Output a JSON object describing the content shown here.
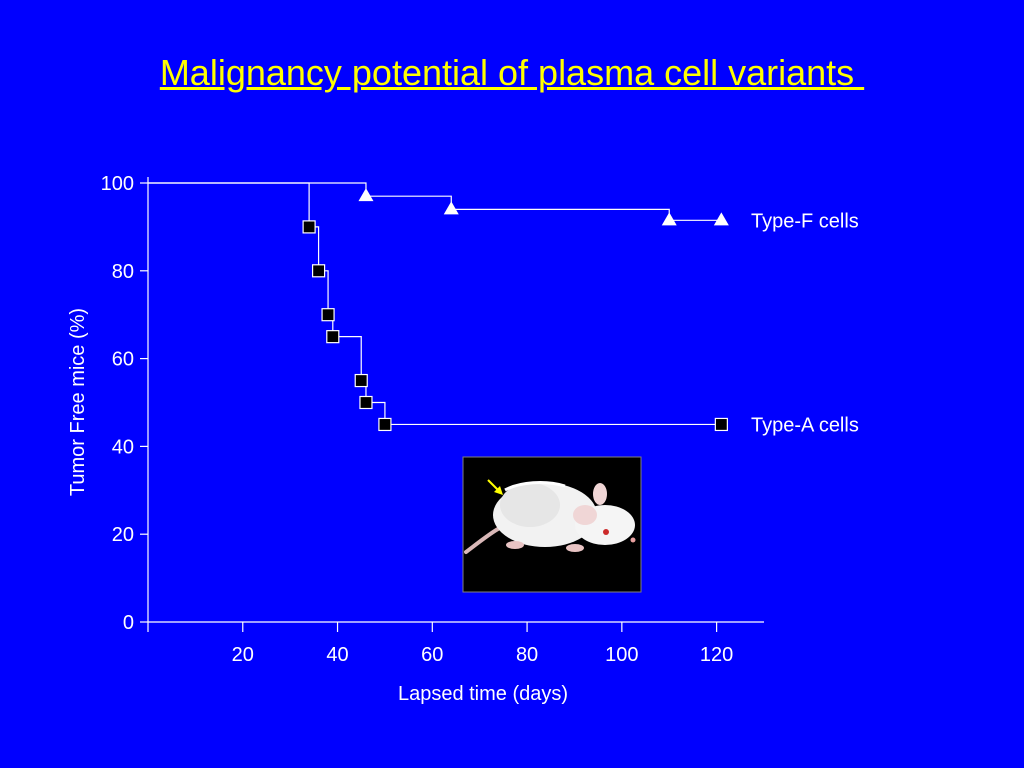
{
  "slide": {
    "title": "Malignancy potential of plasma cell variants ",
    "title_color": "#ffff00",
    "background_color": "#0000ff"
  },
  "chart_data": {
    "type": "line",
    "step": true,
    "title": "",
    "xlabel": "Lapsed time (days)",
    "ylabel": "Tumor Free mice (%)",
    "xlim": [
      0,
      130
    ],
    "ylim": [
      0,
      100
    ],
    "xticks": [
      20,
      40,
      60,
      80,
      100,
      120
    ],
    "yticks": [
      0,
      20,
      40,
      60,
      80,
      100
    ],
    "grid": false,
    "legend": "inline-right",
    "series": [
      {
        "name": "Type-F cells",
        "marker": "triangle",
        "color": "#ffffff",
        "x": [
          0,
          46,
          64,
          110,
          121
        ],
        "y": [
          100,
          97,
          94,
          91.5,
          91.5
        ],
        "censor_x": [
          46,
          64,
          110,
          121
        ],
        "censor_y": [
          97,
          94,
          91.5,
          91.5
        ]
      },
      {
        "name": "Type-A cells",
        "marker": "square",
        "color": "#ffffff",
        "x": [
          0,
          34,
          36,
          38,
          39,
          45,
          46,
          50,
          121
        ],
        "y": [
          100,
          90,
          80,
          70,
          65,
          55,
          50,
          45,
          45
        ],
        "censor_x": [
          34,
          36,
          38,
          39,
          45,
          46,
          50,
          121
        ],
        "censor_y": [
          90,
          80,
          70,
          65,
          55,
          50,
          45,
          45
        ]
      }
    ],
    "inset_image": {
      "subject": "white mouse with tumor",
      "arrow_color": "#ffff00"
    }
  }
}
